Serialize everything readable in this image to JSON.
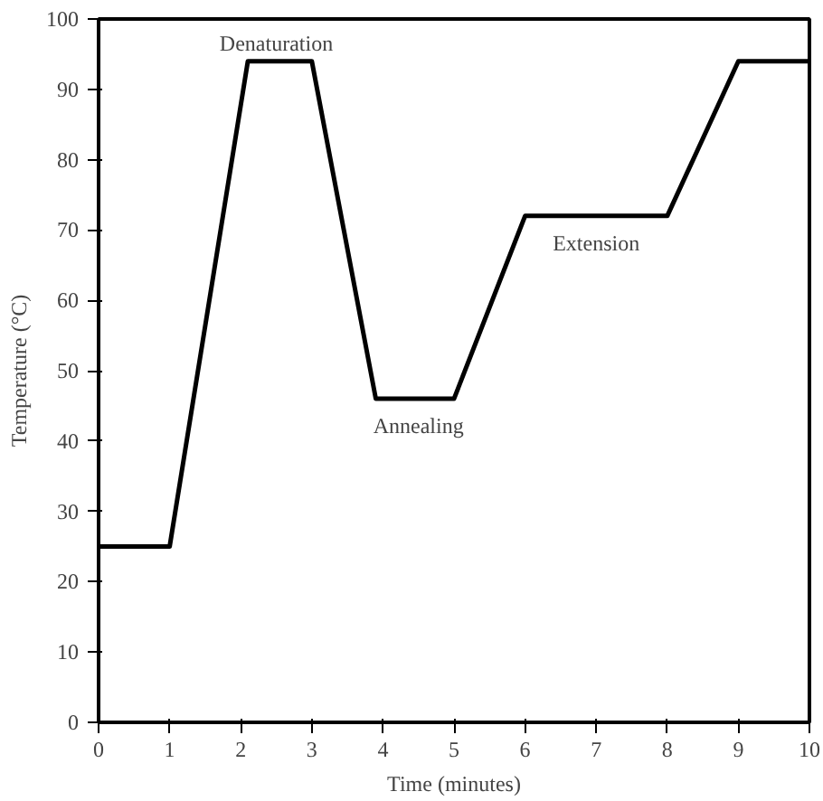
{
  "chart_data": {
    "type": "line",
    "xlabel": "Time (minutes)",
    "ylabel": "Temperature (°C)",
    "x": [
      0,
      1,
      2.1,
      3,
      3.9,
      5,
      6,
      8,
      9,
      10
    ],
    "series": [
      {
        "color": "#000000",
        "values": [
          25,
          25,
          94,
          94,
          46,
          46,
          72,
          72,
          94,
          94
        ]
      }
    ],
    "xlim": [
      0,
      10
    ],
    "ylim": [
      0,
      100
    ],
    "xticks": [
      0,
      1,
      2,
      3,
      4,
      5,
      6,
      7,
      8,
      9,
      10
    ],
    "yticks": [
      0,
      10,
      20,
      30,
      40,
      50,
      60,
      70,
      80,
      90,
      100
    ],
    "grid": false,
    "marker": "none",
    "line_style": "solid",
    "annotations": [
      {
        "text": "Denaturation",
        "x": 2.5,
        "y": 94
      },
      {
        "text": "Annealing",
        "x": 4.5,
        "y": 46
      },
      {
        "text": "Extension",
        "x": 7,
        "y": 72
      }
    ]
  }
}
